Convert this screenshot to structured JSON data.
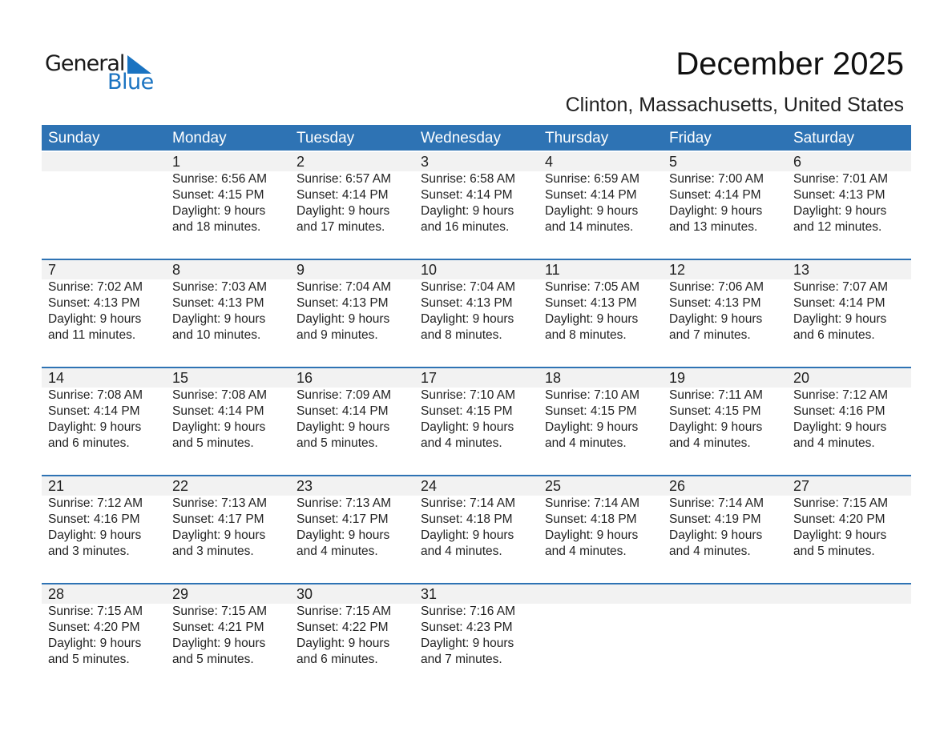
{
  "logo": {
    "line1": "General",
    "line2": "Blue",
    "color": "#1a73c1"
  },
  "title": "December 2025",
  "location": "Clinton, Massachusetts, United States",
  "colors": {
    "header": "#2e73b4",
    "band": "#f2f2f2"
  },
  "days": [
    "Sunday",
    "Monday",
    "Tuesday",
    "Wednesday",
    "Thursday",
    "Friday",
    "Saturday"
  ],
  "weeks": [
    [
      null,
      {
        "day": "1",
        "sunrise": "Sunrise: 6:56 AM",
        "sunset": "Sunset: 4:15 PM",
        "daylight": "Daylight: 9 hours",
        "minutes": "and 18 minutes."
      },
      {
        "day": "2",
        "sunrise": "Sunrise: 6:57 AM",
        "sunset": "Sunset: 4:14 PM",
        "daylight": "Daylight: 9 hours",
        "minutes": "and 17 minutes."
      },
      {
        "day": "3",
        "sunrise": "Sunrise: 6:58 AM",
        "sunset": "Sunset: 4:14 PM",
        "daylight": "Daylight: 9 hours",
        "minutes": "and 16 minutes."
      },
      {
        "day": "4",
        "sunrise": "Sunrise: 6:59 AM",
        "sunset": "Sunset: 4:14 PM",
        "daylight": "Daylight: 9 hours",
        "minutes": "and 14 minutes."
      },
      {
        "day": "5",
        "sunrise": "Sunrise: 7:00 AM",
        "sunset": "Sunset: 4:14 PM",
        "daylight": "Daylight: 9 hours",
        "minutes": "and 13 minutes."
      },
      {
        "day": "6",
        "sunrise": "Sunrise: 7:01 AM",
        "sunset": "Sunset: 4:13 PM",
        "daylight": "Daylight: 9 hours",
        "minutes": "and 12 minutes."
      }
    ],
    [
      {
        "day": "7",
        "sunrise": "Sunrise: 7:02 AM",
        "sunset": "Sunset: 4:13 PM",
        "daylight": "Daylight: 9 hours",
        "minutes": "and 11 minutes."
      },
      {
        "day": "8",
        "sunrise": "Sunrise: 7:03 AM",
        "sunset": "Sunset: 4:13 PM",
        "daylight": "Daylight: 9 hours",
        "minutes": "and 10 minutes."
      },
      {
        "day": "9",
        "sunrise": "Sunrise: 7:04 AM",
        "sunset": "Sunset: 4:13 PM",
        "daylight": "Daylight: 9 hours",
        "minutes": "and 9 minutes."
      },
      {
        "day": "10",
        "sunrise": "Sunrise: 7:04 AM",
        "sunset": "Sunset: 4:13 PM",
        "daylight": "Daylight: 9 hours",
        "minutes": "and 8 minutes."
      },
      {
        "day": "11",
        "sunrise": "Sunrise: 7:05 AM",
        "sunset": "Sunset: 4:13 PM",
        "daylight": "Daylight: 9 hours",
        "minutes": "and 8 minutes."
      },
      {
        "day": "12",
        "sunrise": "Sunrise: 7:06 AM",
        "sunset": "Sunset: 4:13 PM",
        "daylight": "Daylight: 9 hours",
        "minutes": "and 7 minutes."
      },
      {
        "day": "13",
        "sunrise": "Sunrise: 7:07 AM",
        "sunset": "Sunset: 4:14 PM",
        "daylight": "Daylight: 9 hours",
        "minutes": "and 6 minutes."
      }
    ],
    [
      {
        "day": "14",
        "sunrise": "Sunrise: 7:08 AM",
        "sunset": "Sunset: 4:14 PM",
        "daylight": "Daylight: 9 hours",
        "minutes": "and 6 minutes."
      },
      {
        "day": "15",
        "sunrise": "Sunrise: 7:08 AM",
        "sunset": "Sunset: 4:14 PM",
        "daylight": "Daylight: 9 hours",
        "minutes": "and 5 minutes."
      },
      {
        "day": "16",
        "sunrise": "Sunrise: 7:09 AM",
        "sunset": "Sunset: 4:14 PM",
        "daylight": "Daylight: 9 hours",
        "minutes": "and 5 minutes."
      },
      {
        "day": "17",
        "sunrise": "Sunrise: 7:10 AM",
        "sunset": "Sunset: 4:15 PM",
        "daylight": "Daylight: 9 hours",
        "minutes": "and 4 minutes."
      },
      {
        "day": "18",
        "sunrise": "Sunrise: 7:10 AM",
        "sunset": "Sunset: 4:15 PM",
        "daylight": "Daylight: 9 hours",
        "minutes": "and 4 minutes."
      },
      {
        "day": "19",
        "sunrise": "Sunrise: 7:11 AM",
        "sunset": "Sunset: 4:15 PM",
        "daylight": "Daylight: 9 hours",
        "minutes": "and 4 minutes."
      },
      {
        "day": "20",
        "sunrise": "Sunrise: 7:12 AM",
        "sunset": "Sunset: 4:16 PM",
        "daylight": "Daylight: 9 hours",
        "minutes": "and 4 minutes."
      }
    ],
    [
      {
        "day": "21",
        "sunrise": "Sunrise: 7:12 AM",
        "sunset": "Sunset: 4:16 PM",
        "daylight": "Daylight: 9 hours",
        "minutes": "and 3 minutes."
      },
      {
        "day": "22",
        "sunrise": "Sunrise: 7:13 AM",
        "sunset": "Sunset: 4:17 PM",
        "daylight": "Daylight: 9 hours",
        "minutes": "and 3 minutes."
      },
      {
        "day": "23",
        "sunrise": "Sunrise: 7:13 AM",
        "sunset": "Sunset: 4:17 PM",
        "daylight": "Daylight: 9 hours",
        "minutes": "and 4 minutes."
      },
      {
        "day": "24",
        "sunrise": "Sunrise: 7:14 AM",
        "sunset": "Sunset: 4:18 PM",
        "daylight": "Daylight: 9 hours",
        "minutes": "and 4 minutes."
      },
      {
        "day": "25",
        "sunrise": "Sunrise: 7:14 AM",
        "sunset": "Sunset: 4:18 PM",
        "daylight": "Daylight: 9 hours",
        "minutes": "and 4 minutes."
      },
      {
        "day": "26",
        "sunrise": "Sunrise: 7:14 AM",
        "sunset": "Sunset: 4:19 PM",
        "daylight": "Daylight: 9 hours",
        "minutes": "and 4 minutes."
      },
      {
        "day": "27",
        "sunrise": "Sunrise: 7:15 AM",
        "sunset": "Sunset: 4:20 PM",
        "daylight": "Daylight: 9 hours",
        "minutes": "and 5 minutes."
      }
    ],
    [
      {
        "day": "28",
        "sunrise": "Sunrise: 7:15 AM",
        "sunset": "Sunset: 4:20 PM",
        "daylight": "Daylight: 9 hours",
        "minutes": "and 5 minutes."
      },
      {
        "day": "29",
        "sunrise": "Sunrise: 7:15 AM",
        "sunset": "Sunset: 4:21 PM",
        "daylight": "Daylight: 9 hours",
        "minutes": "and 5 minutes."
      },
      {
        "day": "30",
        "sunrise": "Sunrise: 7:15 AM",
        "sunset": "Sunset: 4:22 PM",
        "daylight": "Daylight: 9 hours",
        "minutes": "and 6 minutes."
      },
      {
        "day": "31",
        "sunrise": "Sunrise: 7:16 AM",
        "sunset": "Sunset: 4:23 PM",
        "daylight": "Daylight: 9 hours",
        "minutes": "and 7 minutes."
      },
      null,
      null,
      null
    ]
  ]
}
